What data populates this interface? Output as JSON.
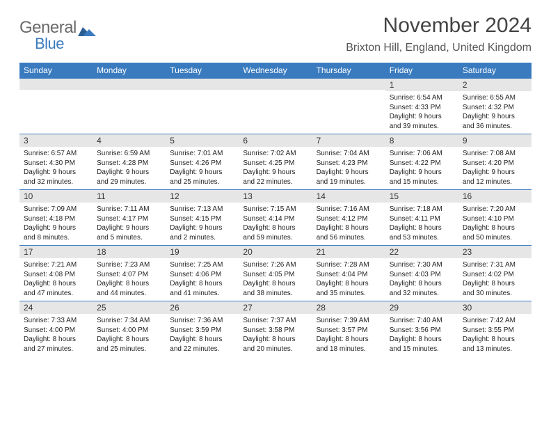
{
  "brand": {
    "part1": "General",
    "part2": "Blue"
  },
  "title": "November 2024",
  "location": "Brixton Hill, England, United Kingdom",
  "weekdays": [
    "Sunday",
    "Monday",
    "Tuesday",
    "Wednesday",
    "Thursday",
    "Friday",
    "Saturday"
  ],
  "colors": {
    "accent": "#3a7bbf",
    "header_bg": "#3a7bbf",
    "daynum_bg": "#e6e6e6",
    "border": "#3a7bbf",
    "text": "#222",
    "muted": "#555",
    "logo_grey": "#6a6a6a"
  },
  "cells": [
    [
      null,
      null,
      null,
      null,
      null,
      {
        "n": "1",
        "sr": "6:54 AM",
        "ss": "4:33 PM",
        "dl": "9 hours and 39 minutes."
      },
      {
        "n": "2",
        "sr": "6:55 AM",
        "ss": "4:32 PM",
        "dl": "9 hours and 36 minutes."
      }
    ],
    [
      {
        "n": "3",
        "sr": "6:57 AM",
        "ss": "4:30 PM",
        "dl": "9 hours and 32 minutes."
      },
      {
        "n": "4",
        "sr": "6:59 AM",
        "ss": "4:28 PM",
        "dl": "9 hours and 29 minutes."
      },
      {
        "n": "5",
        "sr": "7:01 AM",
        "ss": "4:26 PM",
        "dl": "9 hours and 25 minutes."
      },
      {
        "n": "6",
        "sr": "7:02 AM",
        "ss": "4:25 PM",
        "dl": "9 hours and 22 minutes."
      },
      {
        "n": "7",
        "sr": "7:04 AM",
        "ss": "4:23 PM",
        "dl": "9 hours and 19 minutes."
      },
      {
        "n": "8",
        "sr": "7:06 AM",
        "ss": "4:22 PM",
        "dl": "9 hours and 15 minutes."
      },
      {
        "n": "9",
        "sr": "7:08 AM",
        "ss": "4:20 PM",
        "dl": "9 hours and 12 minutes."
      }
    ],
    [
      {
        "n": "10",
        "sr": "7:09 AM",
        "ss": "4:18 PM",
        "dl": "9 hours and 8 minutes."
      },
      {
        "n": "11",
        "sr": "7:11 AM",
        "ss": "4:17 PM",
        "dl": "9 hours and 5 minutes."
      },
      {
        "n": "12",
        "sr": "7:13 AM",
        "ss": "4:15 PM",
        "dl": "9 hours and 2 minutes."
      },
      {
        "n": "13",
        "sr": "7:15 AM",
        "ss": "4:14 PM",
        "dl": "8 hours and 59 minutes."
      },
      {
        "n": "14",
        "sr": "7:16 AM",
        "ss": "4:12 PM",
        "dl": "8 hours and 56 minutes."
      },
      {
        "n": "15",
        "sr": "7:18 AM",
        "ss": "4:11 PM",
        "dl": "8 hours and 53 minutes."
      },
      {
        "n": "16",
        "sr": "7:20 AM",
        "ss": "4:10 PM",
        "dl": "8 hours and 50 minutes."
      }
    ],
    [
      {
        "n": "17",
        "sr": "7:21 AM",
        "ss": "4:08 PM",
        "dl": "8 hours and 47 minutes."
      },
      {
        "n": "18",
        "sr": "7:23 AM",
        "ss": "4:07 PM",
        "dl": "8 hours and 44 minutes."
      },
      {
        "n": "19",
        "sr": "7:25 AM",
        "ss": "4:06 PM",
        "dl": "8 hours and 41 minutes."
      },
      {
        "n": "20",
        "sr": "7:26 AM",
        "ss": "4:05 PM",
        "dl": "8 hours and 38 minutes."
      },
      {
        "n": "21",
        "sr": "7:28 AM",
        "ss": "4:04 PM",
        "dl": "8 hours and 35 minutes."
      },
      {
        "n": "22",
        "sr": "7:30 AM",
        "ss": "4:03 PM",
        "dl": "8 hours and 32 minutes."
      },
      {
        "n": "23",
        "sr": "7:31 AM",
        "ss": "4:02 PM",
        "dl": "8 hours and 30 minutes."
      }
    ],
    [
      {
        "n": "24",
        "sr": "7:33 AM",
        "ss": "4:00 PM",
        "dl": "8 hours and 27 minutes."
      },
      {
        "n": "25",
        "sr": "7:34 AM",
        "ss": "4:00 PM",
        "dl": "8 hours and 25 minutes."
      },
      {
        "n": "26",
        "sr": "7:36 AM",
        "ss": "3:59 PM",
        "dl": "8 hours and 22 minutes."
      },
      {
        "n": "27",
        "sr": "7:37 AM",
        "ss": "3:58 PM",
        "dl": "8 hours and 20 minutes."
      },
      {
        "n": "28",
        "sr": "7:39 AM",
        "ss": "3:57 PM",
        "dl": "8 hours and 18 minutes."
      },
      {
        "n": "29",
        "sr": "7:40 AM",
        "ss": "3:56 PM",
        "dl": "8 hours and 15 minutes."
      },
      {
        "n": "30",
        "sr": "7:42 AM",
        "ss": "3:55 PM",
        "dl": "8 hours and 13 minutes."
      }
    ]
  ],
  "labels": {
    "sunrise": "Sunrise:",
    "sunset": "Sunset:",
    "daylight": "Daylight:"
  }
}
